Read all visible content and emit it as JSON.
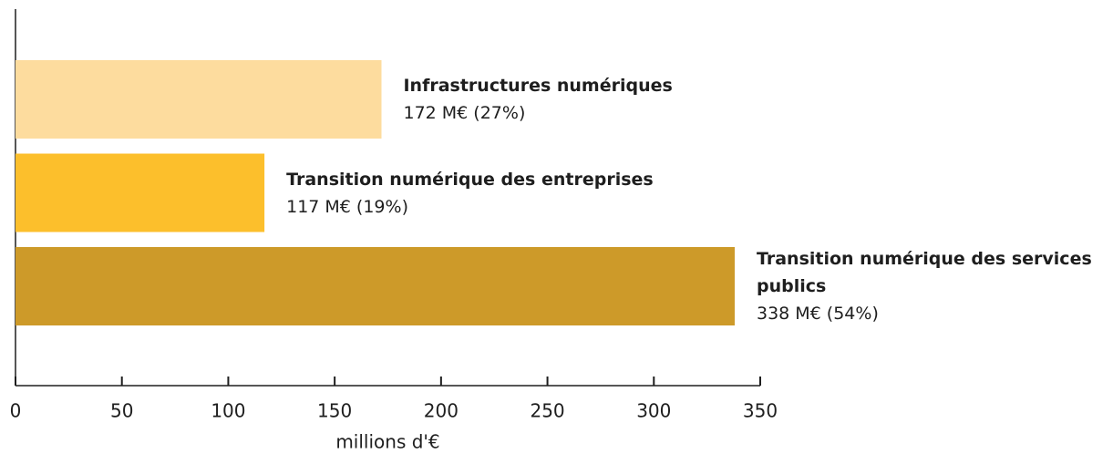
{
  "chart_data": {
    "type": "bar",
    "orientation": "horizontal",
    "categories": [
      "Infrastructures numériques",
      "Transition numérique des entreprises",
      "Transition numérique des services publics"
    ],
    "values": [
      172,
      117,
      338
    ],
    "value_labels": [
      "172 M€ (27%)",
      "117 M€ (19%)",
      "338 M€ (54%)"
    ],
    "colors": [
      "#fddc9e",
      "#fcbf2c",
      "#cd9a29"
    ],
    "xlabel": "millions d'€",
    "xlim": [
      0,
      350
    ],
    "xticks": [
      0,
      50,
      100,
      150,
      200,
      250,
      300,
      350
    ]
  }
}
